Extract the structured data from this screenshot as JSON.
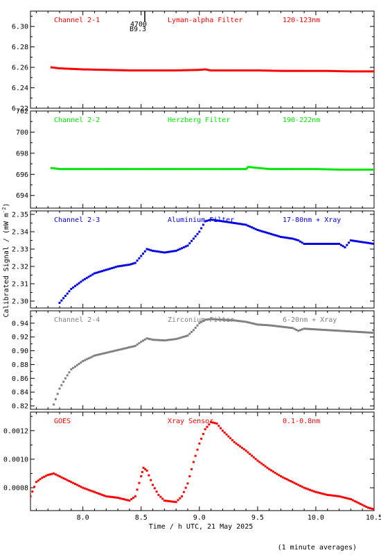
{
  "figure": {
    "xlabel": "Time / h UTC, 21 May 2025",
    "ylabel_main": "Calibrated Signal / (mW m",
    "ylabel_sup": "-2",
    "ylabel_end": ")",
    "footnote": "(1 minute averages)",
    "event_marker": {
      "x": 8.53,
      "line1": "4700",
      "line2": "B9.3"
    },
    "xlim": [
      7.55,
      10.5
    ],
    "xticks": [
      8.0,
      8.5,
      9.0,
      9.5,
      10.0,
      10.5
    ],
    "xtick_labels": [
      "8.0",
      "8.5",
      "9.0",
      "9.5",
      "10.0",
      "10.5"
    ]
  },
  "chart_data": [
    {
      "type": "scatter",
      "channel_label": "Channel 2-1",
      "filter_label": "Lyman-alpha Filter",
      "band_label": "120-123nm",
      "color": "#ff0000",
      "ylim": [
        6.22,
        6.315
      ],
      "yticks": [
        6.22,
        6.24,
        6.26,
        6.28,
        6.3
      ],
      "ytick_labels": [
        "6.22",
        "6.24",
        "6.26",
        "6.28",
        "6.30"
      ],
      "series": [
        {
          "x": [
            7.73,
            7.8,
            8.0,
            8.2,
            8.4,
            8.6,
            8.8,
            9.0,
            9.05,
            9.1,
            9.3,
            9.5,
            9.7,
            9.9,
            10.1,
            10.3,
            10.5
          ],
          "y": [
            6.26,
            6.259,
            6.258,
            6.2575,
            6.257,
            6.257,
            6.257,
            6.2575,
            6.258,
            6.257,
            6.257,
            6.257,
            6.2565,
            6.2565,
            6.2565,
            6.256,
            6.256
          ]
        }
      ]
    },
    {
      "type": "scatter",
      "channel_label": "Channel 2-2",
      "filter_label": "Herzberg Filter",
      "band_label": "190-222nm",
      "color": "#00e600",
      "ylim": [
        692.8,
        702.0
      ],
      "yticks": [
        694,
        696,
        698,
        700,
        702
      ],
      "ytick_labels": [
        "694",
        "696",
        "698",
        "700",
        "702"
      ],
      "series": [
        {
          "x": [
            7.73,
            7.8,
            8.0,
            8.2,
            8.4,
            8.6,
            8.8,
            9.0,
            9.2,
            9.4,
            9.42,
            9.6,
            9.8,
            10.0,
            10.2,
            10.4,
            10.5
          ],
          "y": [
            696.6,
            696.5,
            696.5,
            696.5,
            696.5,
            696.5,
            696.5,
            696.5,
            696.5,
            696.5,
            696.7,
            696.5,
            696.5,
            696.5,
            696.45,
            696.45,
            696.45
          ]
        }
      ]
    },
    {
      "type": "scatter",
      "channel_label": "Channel 2-3",
      "filter_label": "Aluminium Filter",
      "band_label": "17-80nm + Xray",
      "color": "#0000e6",
      "ylim": [
        2.296,
        2.352
      ],
      "yticks": [
        2.3,
        2.31,
        2.32,
        2.33,
        2.34,
        2.35
      ],
      "ytick_labels": [
        "2.30",
        "2.31",
        "2.32",
        "2.33",
        "2.34",
        "2.35"
      ],
      "series": [
        {
          "x": [
            7.8,
            7.85,
            7.9,
            8.0,
            8.1,
            8.2,
            8.3,
            8.4,
            8.45,
            8.5,
            8.55,
            8.6,
            8.7,
            8.8,
            8.9,
            8.95,
            9.0,
            9.05,
            9.1,
            9.2,
            9.3,
            9.4,
            9.5,
            9.6,
            9.7,
            9.8,
            9.85,
            9.9,
            10.0,
            10.1,
            10.2,
            10.25,
            10.3,
            10.4,
            10.5
          ],
          "y": [
            2.299,
            2.303,
            2.307,
            2.312,
            2.316,
            2.318,
            2.32,
            2.321,
            2.322,
            2.326,
            2.33,
            2.329,
            2.328,
            2.329,
            2.332,
            2.336,
            2.34,
            2.346,
            2.347,
            2.346,
            2.345,
            2.344,
            2.341,
            2.339,
            2.337,
            2.336,
            2.335,
            2.333,
            2.333,
            2.333,
            2.333,
            2.331,
            2.335,
            2.334,
            2.333
          ]
        }
      ]
    },
    {
      "type": "scatter",
      "channel_label": "Channel 2-4",
      "filter_label": "Zirconium Filter",
      "band_label": "6-20nm + Xray",
      "color": "#808080",
      "ylim": [
        0.815,
        0.958
      ],
      "yticks": [
        0.82,
        0.84,
        0.86,
        0.88,
        0.9,
        0.92,
        0.94
      ],
      "ytick_labels": [
        "0.82",
        "0.84",
        "0.86",
        "0.88",
        "0.90",
        "0.92",
        "0.94"
      ],
      "series": [
        {
          "x": [
            7.75,
            7.8,
            7.85,
            7.9,
            8.0,
            8.1,
            8.2,
            8.3,
            8.4,
            8.45,
            8.5,
            8.55,
            8.6,
            8.7,
            8.8,
            8.9,
            8.95,
            9.0,
            9.05,
            9.1,
            9.2,
            9.3,
            9.4,
            9.5,
            9.6,
            9.7,
            9.8,
            9.85,
            9.9,
            10.0,
            10.1,
            10.2,
            10.3,
            10.4,
            10.5
          ],
          "y": [
            0.822,
            0.845,
            0.86,
            0.873,
            0.885,
            0.893,
            0.897,
            0.901,
            0.905,
            0.907,
            0.913,
            0.918,
            0.916,
            0.915,
            0.917,
            0.922,
            0.93,
            0.94,
            0.945,
            0.946,
            0.945,
            0.944,
            0.942,
            0.938,
            0.937,
            0.935,
            0.933,
            0.929,
            0.932,
            0.931,
            0.93,
            0.929,
            0.928,
            0.927,
            0.926
          ]
        }
      ]
    },
    {
      "type": "scatter",
      "channel_label": "GOES",
      "filter_label": "Xray Sensor",
      "band_label": "0.1-0.8nm",
      "color": "#ff0000",
      "ylim": [
        0.00064,
        0.00133
      ],
      "yticks": [
        0.0008,
        0.001,
        0.0012
      ],
      "ytick_labels": [
        "0.0008",
        "0.0010",
        "0.0012"
      ],
      "series": [
        {
          "x": [
            7.55,
            7.6,
            7.65,
            7.7,
            7.75,
            7.8,
            7.9,
            8.0,
            8.1,
            8.2,
            8.3,
            8.4,
            8.45,
            8.5,
            8.52,
            8.55,
            8.6,
            8.65,
            8.7,
            8.8,
            8.85,
            8.9,
            8.95,
            9.0,
            9.05,
            9.1,
            9.15,
            9.2,
            9.3,
            9.4,
            9.5,
            9.6,
            9.7,
            9.8,
            9.9,
            10.0,
            10.1,
            10.2,
            10.3,
            10.35,
            10.4,
            10.45,
            10.5
          ],
          "y": [
            0.00074,
            0.00084,
            0.00087,
            0.00089,
            0.0009,
            0.00088,
            0.00084,
            0.0008,
            0.00077,
            0.00074,
            0.00073,
            0.00071,
            0.00074,
            0.00088,
            0.00094,
            0.00092,
            0.00082,
            0.00075,
            0.00071,
            0.0007,
            0.00074,
            0.00083,
            0.00098,
            0.00111,
            0.00121,
            0.00126,
            0.00125,
            0.0012,
            0.00112,
            0.00106,
            0.00099,
            0.00093,
            0.00088,
            0.00084,
            0.0008,
            0.00077,
            0.00075,
            0.00074,
            0.00072,
            0.0007,
            0.00068,
            0.00066,
            0.00065
          ]
        }
      ]
    }
  ]
}
